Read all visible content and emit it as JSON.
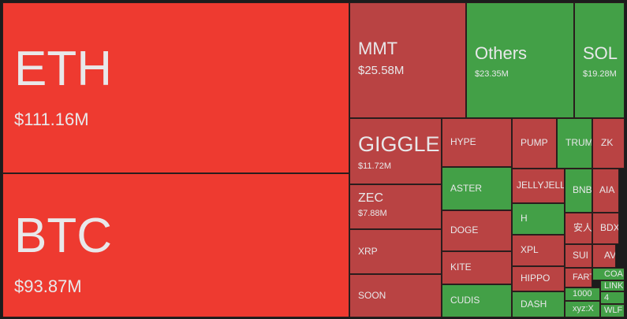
{
  "chart_data": {
    "type": "treemap",
    "categories": [
      "ETH",
      "BTC",
      "MMT",
      "Others",
      "SOL",
      "GIGGLE",
      "ZEC",
      "XRP",
      "SOON",
      "HYPE",
      "ASTER",
      "DOGE",
      "KITE",
      "CUDIS",
      "PUMP",
      "TRUMP",
      "ZK",
      "JELLYJELLY",
      "H",
      "XPL",
      "HIPPO",
      "DASH",
      "BNB",
      "AIA",
      "安人",
      "BDX",
      "SUI",
      "AV",
      "FART",
      "COAI",
      "LINK",
      "1000",
      "4",
      "xyz:X",
      "WLF"
    ],
    "values": [
      111.16,
      93.87,
      25.58,
      23.35,
      19.28,
      11.72,
      7.88,
      7.7,
      7.5,
      6.4,
      5.7,
      5.4,
      4.3,
      4.3,
      4.2,
      3.3,
      3.1,
      3.4,
      3.1,
      3.1,
      2.5,
      2.6,
      2.3,
      2.2,
      1.6,
      1.6,
      1.2,
      1.0,
      1.0,
      0.8,
      0.5,
      0.7,
      0.5,
      1.0,
      0.6
    ],
    "value_labels": [
      "$111.16M",
      "$93.87M",
      "$25.58M",
      "$23.35M",
      "$19.28M",
      "$11.72M",
      "$7.88M",
      null,
      null,
      null,
      null,
      null,
      null,
      null,
      null,
      null,
      null,
      null,
      null,
      null,
      null,
      null,
      null,
      null,
      null,
      null,
      null,
      null,
      null,
      null,
      null,
      null,
      null,
      null,
      null
    ],
    "colors": [
      "#ee3a30",
      "#ee3a30",
      "#b94343",
      "#43a047",
      "#43a047",
      "#b94343",
      "#b94343",
      "#b94343",
      "#b94343",
      "#b94343",
      "#43a047",
      "#b94343",
      "#b94343",
      "#43a047",
      "#b94343",
      "#43a047",
      "#b94343",
      "#b94343",
      "#43a047",
      "#b94343",
      "#b94343",
      "#43a047",
      "#43a047",
      "#b94343",
      "#b94343",
      "#b94343",
      "#b94343",
      "#b94343",
      "#b94343",
      "#43a047",
      "#43a047",
      "#43a047",
      "#43a047",
      "#43a047",
      "#43a047"
    ]
  }
}
